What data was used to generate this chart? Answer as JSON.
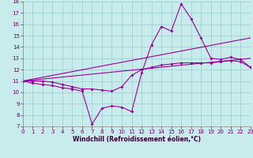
{
  "xlabel": "Windchill (Refroidissement éolien,°C)",
  "bg_color": "#c8ecec",
  "line_color": "#990099",
  "xlim": [
    0,
    23
  ],
  "ylim": [
    7,
    18
  ],
  "yticks": [
    7,
    8,
    9,
    10,
    11,
    12,
    13,
    14,
    15,
    16,
    17,
    18
  ],
  "xticks": [
    0,
    1,
    2,
    3,
    4,
    5,
    6,
    7,
    8,
    9,
    10,
    11,
    12,
    13,
    14,
    15,
    16,
    17,
    18,
    19,
    20,
    21,
    22,
    23
  ],
  "lines": [
    {
      "x": [
        0,
        1,
        2,
        3,
        4,
        5,
        6,
        7,
        8,
        9,
        10,
        11,
        12,
        13,
        14,
        15,
        16,
        17,
        18,
        19,
        20,
        21,
        22,
        23
      ],
      "y": [
        11,
        10.8,
        10.7,
        10.6,
        10.4,
        10.3,
        10.1,
        7.2,
        8.6,
        8.8,
        8.7,
        8.3,
        11.7,
        14.2,
        15.8,
        15.4,
        17.8,
        16.5,
        14.8,
        13.0,
        12.9,
        13.1,
        12.9,
        12.2
      ]
    },
    {
      "x": [
        0,
        1,
        2,
        3,
        4,
        5,
        6,
        7,
        8,
        9,
        10,
        11,
        12,
        13,
        14,
        15,
        16,
        17,
        18,
        19,
        20,
        21,
        22,
        23
      ],
      "y": [
        11,
        11.0,
        11.0,
        10.9,
        10.7,
        10.5,
        10.3,
        10.3,
        10.2,
        10.1,
        10.5,
        11.5,
        12.0,
        12.2,
        12.4,
        12.5,
        12.6,
        12.6,
        12.6,
        12.6,
        12.7,
        12.8,
        12.7,
        12.2
      ]
    },
    {
      "x": [
        0,
        23
      ],
      "y": [
        11,
        14.8
      ]
    },
    {
      "x": [
        0,
        23
      ],
      "y": [
        11,
        13.0
      ]
    }
  ],
  "marker": "D",
  "markersize": 2.0,
  "linewidth": 0.8,
  "grid_color": "#99cccc",
  "tick_fontsize": 5.0,
  "xlabel_fontsize": 5.5
}
